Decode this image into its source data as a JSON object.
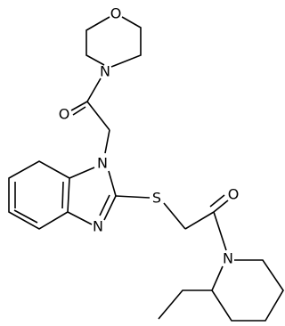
{
  "atoms": [
    {
      "label": "O"
    },
    {
      "label": "N"
    },
    {
      "label": "O"
    },
    {
      "label": "N"
    },
    {
      "label": "N"
    },
    {
      "label": "S"
    },
    {
      "label": "O"
    },
    {
      "label": "N"
    }
  ]
}
